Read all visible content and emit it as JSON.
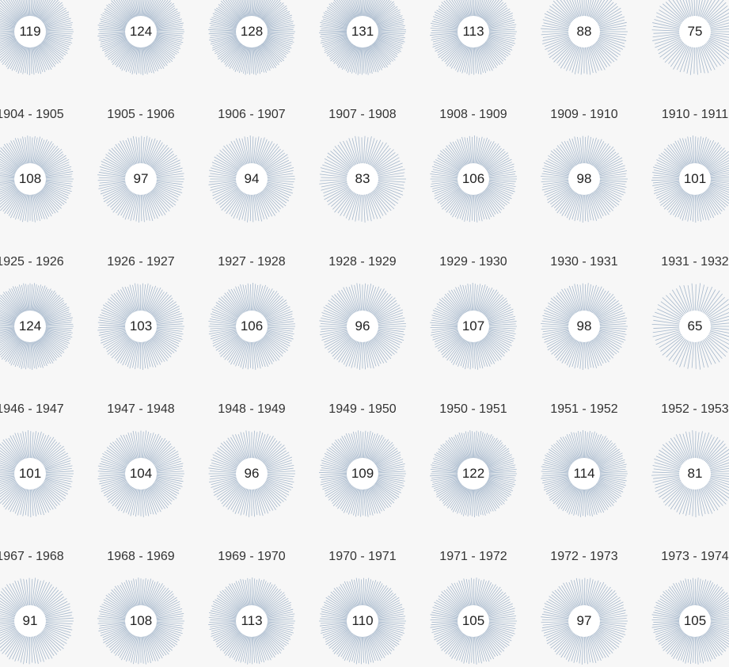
{
  "colors": {
    "background": "#f7f7f7",
    "ray": "#a6b8cc",
    "center": "#ffffff",
    "text": "#333333"
  },
  "chart_data": {
    "type": "radial-burst-grid",
    "columns": 7,
    "rows": [
      {
        "label_row_above": null,
        "values": [
          119,
          124,
          128,
          131,
          113,
          88,
          75
        ]
      },
      {
        "labels": [
          "1904 - 1905",
          "1905 - 1906",
          "1906 - 1907",
          "1907 - 1908",
          "1908 - 1909",
          "1909 - 1910",
          "1910 - 1911"
        ],
        "values": [
          108,
          97,
          94,
          83,
          106,
          98,
          101
        ]
      },
      {
        "labels": [
          "1925 - 1926",
          "1926 - 1927",
          "1927 - 1928",
          "1928 - 1929",
          "1929 - 1930",
          "1930 - 1931",
          "1931 - 1932"
        ],
        "values": [
          124,
          103,
          106,
          96,
          107,
          98,
          65
        ]
      },
      {
        "labels": [
          "1946 - 1947",
          "1947 - 1948",
          "1948 - 1949",
          "1949 - 1950",
          "1950 - 1951",
          "1951 - 1952",
          "1952 - 1953"
        ],
        "values": [
          101,
          104,
          96,
          109,
          122,
          114,
          81
        ]
      },
      {
        "labels": [
          "1967 - 1968",
          "1968 - 1969",
          "1969 - 1970",
          "1970 - 1971",
          "1971 - 1972",
          "1972 - 1973",
          "1973 - 1974"
        ],
        "values": [
          91,
          108,
          113,
          110,
          105,
          97,
          105
        ]
      }
    ]
  }
}
